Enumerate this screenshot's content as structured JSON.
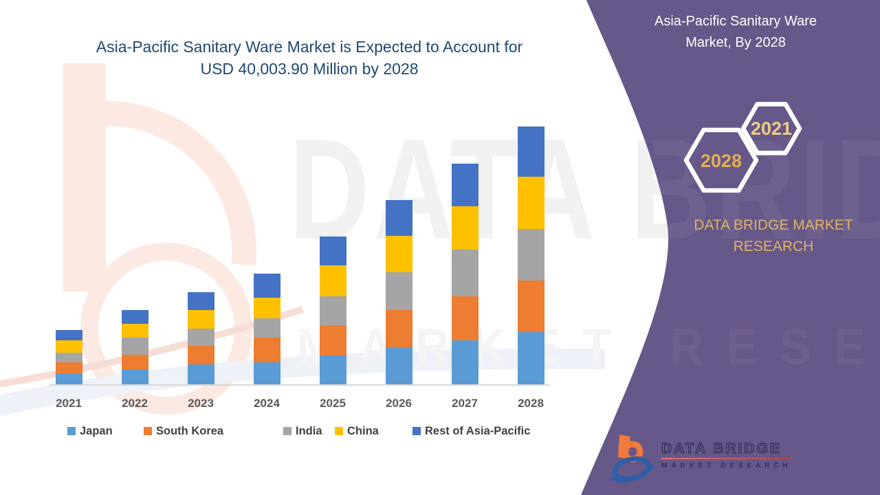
{
  "header": {
    "line1": "Asia-Pacific Sanitary Ware Market is Expected to Account for",
    "line2": "USD 40,003.90 Million by 2028"
  },
  "chart_data": {
    "type": "bar",
    "stacked": true,
    "title": "Asia-Pacific Sanitary Ware Market is Expected to Account for USD 40,003.90 Million by 2028",
    "unit": "USD Million",
    "categories": [
      "2021",
      "2022",
      "2023",
      "2024",
      "2025",
      "2026",
      "2027",
      "2028"
    ],
    "series": [
      {
        "name": "Japan",
        "color": "#5B9BD5",
        "values": [
          1700,
          2240,
          3120,
          3410,
          4450,
          5680,
          6850,
          8100
        ]
      },
      {
        "name": "South Korea",
        "color": "#ED7D31",
        "values": [
          1710,
          2310,
          2850,
          3800,
          4720,
          5790,
          6750,
          8000
        ]
      },
      {
        "name": "India",
        "color": "#A5A5A5",
        "values": [
          1490,
          2670,
          2670,
          3020,
          4450,
          5860,
          7280,
          8000
        ]
      },
      {
        "name": "China",
        "color": "#FFC000",
        "values": [
          1950,
          2130,
          2850,
          3200,
          4800,
          5680,
          6750,
          8100
        ]
      },
      {
        "name": "Rest of Asia-Pacific",
        "color": "#4472C4",
        "values": [
          1600,
          2130,
          2850,
          3730,
          4510,
          5510,
          6580,
          7803.9
        ]
      }
    ],
    "totals_estimated": [
      8450,
      11480,
      14340,
      17160,
      22930,
      28520,
      34210,
      40003.9
    ],
    "ylim": [
      0,
      40003.9
    ],
    "grid": false,
    "y_axis_visible": false,
    "x_axis_line_color": "#D9D9D9",
    "legend_position": "bottom"
  },
  "side_panel": {
    "panel_color": "#665889",
    "title_line1": "Asia-Pacific Sanitary Ware",
    "title_line2": "Market, By 2028",
    "hexagon_back_label": "2021",
    "hexagon_front_label": "2028",
    "hexagon_back_text_color": "#EDCC85",
    "hexagon_front_text_color": "#E4AF50",
    "brand_line1": "DATA BRIDGE MARKET",
    "brand_line2": "RESEARCH",
    "brand_text_color": "#E0B263"
  },
  "logo": {
    "name": "DATA BRIDGE",
    "tagline": "MARKET RESEARCH"
  },
  "watermark": {
    "brand": "DATA BRIDGE",
    "tagline": "MARKET RESEARCH"
  },
  "colors": {
    "title_text": "#1F4872",
    "axis_text": "#595959",
    "legend_text": "#404040"
  }
}
